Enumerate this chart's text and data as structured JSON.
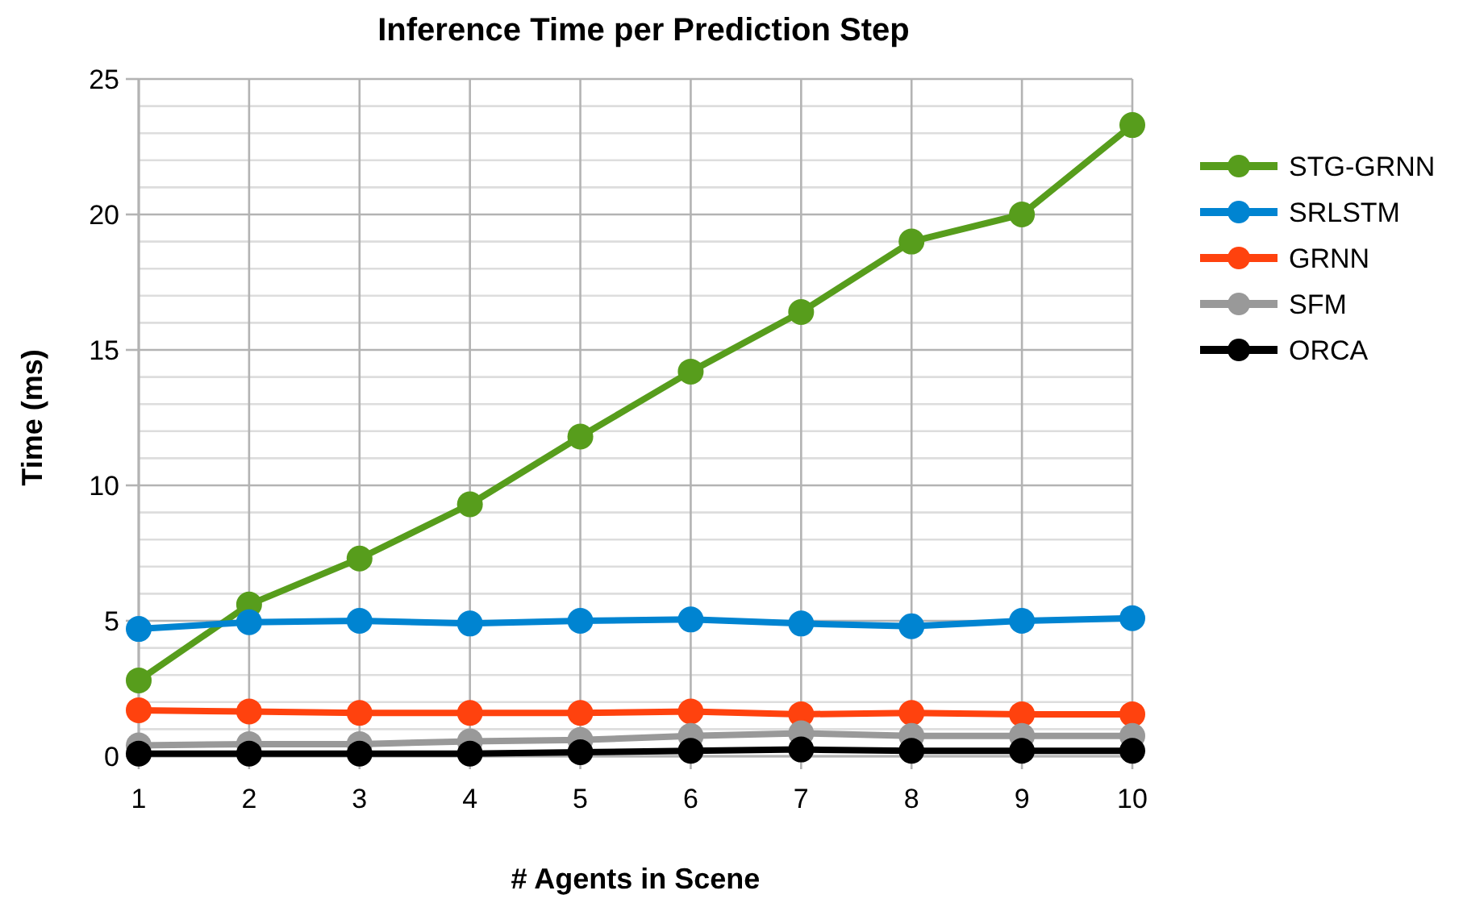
{
  "chart_data": {
    "type": "line",
    "title": "Inference Time per Prediction Step",
    "xlabel": "# Agents in Scene",
    "ylabel": "Time (ms)",
    "x": [
      1,
      2,
      3,
      4,
      5,
      6,
      7,
      8,
      9,
      10
    ],
    "xlim": [
      1,
      10
    ],
    "xticks": [
      1,
      2,
      3,
      4,
      5,
      6,
      7,
      8,
      9,
      10
    ],
    "ylim": [
      0,
      25
    ],
    "yticks": [
      0,
      5,
      10,
      15,
      20,
      25
    ],
    "grid": true,
    "legend": "right",
    "marker": "circle",
    "line_style": "solid",
    "series": [
      {
        "name": "STG-GRNN",
        "color": "#579d1c",
        "values": [
          2.8,
          5.6,
          7.3,
          9.3,
          11.8,
          14.2,
          16.4,
          19.0,
          20.0,
          23.3
        ]
      },
      {
        "name": "SRLSTM",
        "color": "#0084d1",
        "values": [
          4.7,
          4.95,
          5.0,
          4.9,
          5.0,
          5.05,
          4.9,
          4.8,
          5.0,
          5.1
        ]
      },
      {
        "name": "GRNN",
        "color": "#ff420e",
        "values": [
          1.7,
          1.65,
          1.6,
          1.6,
          1.6,
          1.65,
          1.55,
          1.6,
          1.55,
          1.55
        ]
      },
      {
        "name": "SFM",
        "color": "#999999",
        "values": [
          0.4,
          0.45,
          0.45,
          0.55,
          0.6,
          0.75,
          0.85,
          0.75,
          0.75,
          0.75
        ]
      },
      {
        "name": "ORCA",
        "color": "#000000",
        "values": [
          0.1,
          0.1,
          0.1,
          0.1,
          0.15,
          0.2,
          0.25,
          0.2,
          0.2,
          0.2
        ]
      }
    ]
  }
}
